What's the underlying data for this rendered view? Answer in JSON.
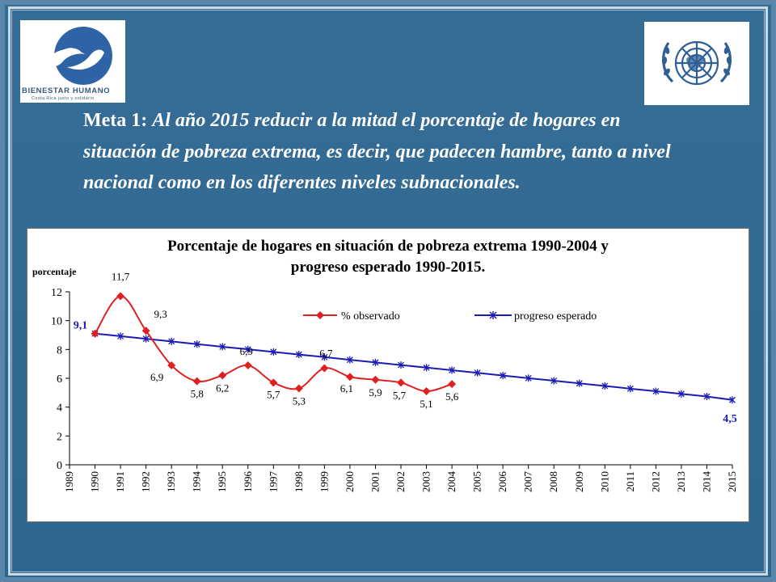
{
  "logos": {
    "left": {
      "name": "BIENESTAR HUMANO",
      "tagline": "Costa Rica justo y solidario"
    },
    "right": {
      "name": "UN emblem"
    }
  },
  "goal": {
    "lead": "Meta 1:",
    "text": "Al año 2015 reducir a la mitad el porcentaje de hogares en situación de pobreza extrema, es decir, que padecen hambre, tanto a nivel nacional como en los diferentes niveles subnacionales."
  },
  "colors": {
    "observed": "#e02020",
    "expected": "#1c1cb4",
    "background": "#2f6790"
  },
  "chart_data": {
    "type": "line",
    "title_line1": "Porcentaje de hogares en situación de pobreza extrema 1990-2004 y",
    "title_line2": "progreso esperado 1990-2015.",
    "ylabel": "porcentaje",
    "xlabel": "",
    "ylim": [
      0,
      12
    ],
    "yticks": [
      0,
      2,
      4,
      6,
      8,
      10,
      12
    ],
    "xticks": [
      "1989",
      "1990",
      "1991",
      "1992",
      "1993",
      "1994",
      "1995",
      "1996",
      "1997",
      "1998",
      "1999",
      "2000",
      "2001",
      "2002",
      "2003",
      "2004",
      "2005",
      "2006",
      "2007",
      "2008",
      "2009",
      "2010",
      "2011",
      "2012",
      "2013",
      "2014",
      "2015"
    ],
    "legend_position": "top-right",
    "series": [
      {
        "name": "% observado",
        "marker": "diamond",
        "points": [
          {
            "x": 1990,
            "y": 9.1,
            "label": "9,1"
          },
          {
            "x": 1991,
            "y": 11.7,
            "label": "11,7"
          },
          {
            "x": 1992,
            "y": 9.3,
            "label": "9,3"
          },
          {
            "x": 1993,
            "y": 6.9,
            "label": "6,9"
          },
          {
            "x": 1994,
            "y": 5.8,
            "label": "5,8"
          },
          {
            "x": 1995,
            "y": 6.2,
            "label": "6,2"
          },
          {
            "x": 1996,
            "y": 6.9,
            "label": "6,9"
          },
          {
            "x": 1997,
            "y": 5.7,
            "label": "5,7"
          },
          {
            "x": 1998,
            "y": 5.3,
            "label": "5,3"
          },
          {
            "x": 1999,
            "y": 6.7,
            "label": "6,7"
          },
          {
            "x": 2000,
            "y": 6.1,
            "label": "6,1"
          },
          {
            "x": 2001,
            "y": 5.9,
            "label": "5,9"
          },
          {
            "x": 2002,
            "y": 5.7,
            "label": "5,7"
          },
          {
            "x": 2003,
            "y": 5.1,
            "label": "5,1"
          },
          {
            "x": 2004,
            "y": 5.6,
            "label": "5,6"
          }
        ]
      },
      {
        "name": "progreso esperado",
        "marker": "star",
        "points": [
          {
            "x": 1990,
            "y": 9.1,
            "label": "9,1"
          },
          {
            "x": 1991,
            "y": 8.92
          },
          {
            "x": 1992,
            "y": 8.74
          },
          {
            "x": 1993,
            "y": 8.56
          },
          {
            "x": 1994,
            "y": 8.37
          },
          {
            "x": 1995,
            "y": 8.19
          },
          {
            "x": 1996,
            "y": 8.01
          },
          {
            "x": 1997,
            "y": 7.83
          },
          {
            "x": 1998,
            "y": 7.65
          },
          {
            "x": 1999,
            "y": 7.47
          },
          {
            "x": 2000,
            "y": 7.28
          },
          {
            "x": 2001,
            "y": 7.1
          },
          {
            "x": 2002,
            "y": 6.92
          },
          {
            "x": 2003,
            "y": 6.74
          },
          {
            "x": 2004,
            "y": 6.56
          },
          {
            "x": 2005,
            "y": 6.38
          },
          {
            "x": 2006,
            "y": 6.19
          },
          {
            "x": 2007,
            "y": 6.01
          },
          {
            "x": 2008,
            "y": 5.83
          },
          {
            "x": 2009,
            "y": 5.65
          },
          {
            "x": 2010,
            "y": 5.47
          },
          {
            "x": 2011,
            "y": 5.28
          },
          {
            "x": 2012,
            "y": 5.1
          },
          {
            "x": 2013,
            "y": 4.92
          },
          {
            "x": 2014,
            "y": 4.74
          },
          {
            "x": 2015,
            "y": 4.5,
            "label": "4,5"
          }
        ]
      }
    ]
  }
}
